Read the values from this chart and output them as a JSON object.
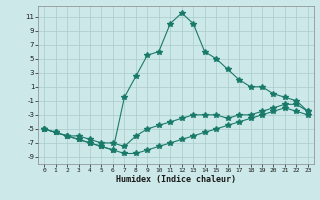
{
  "xlabel": "Humidex (Indice chaleur)",
  "bg_color": "#cce8e8",
  "grid_color": "#aacccc",
  "line_color": "#1a7a6a",
  "xlim": [
    -0.5,
    23.5
  ],
  "ylim": [
    -10,
    12.5
  ],
  "xticks": [
    0,
    1,
    2,
    3,
    4,
    5,
    6,
    7,
    8,
    9,
    10,
    11,
    12,
    13,
    14,
    15,
    16,
    17,
    18,
    19,
    20,
    21,
    22,
    23
  ],
  "yticks": [
    -9,
    -7,
    -5,
    -3,
    -1,
    1,
    3,
    5,
    7,
    9,
    11
  ],
  "line3_x": [
    0,
    1,
    2,
    3,
    4,
    5,
    6,
    7,
    8,
    9,
    10,
    11,
    12,
    13,
    14,
    15,
    16,
    17,
    18,
    19,
    20,
    21,
    22,
    23
  ],
  "line3_y": [
    -5,
    -5.5,
    -6,
    -6.5,
    -7,
    -7.5,
    -8,
    -8.5,
    -8.5,
    -8,
    -7.5,
    -7,
    -6.5,
    -6,
    -5.5,
    -5,
    -4.5,
    -4,
    -3.5,
    -3,
    -2.5,
    -2,
    -2.5,
    -3
  ],
  "line2_x": [
    0,
    1,
    2,
    3,
    4,
    5,
    6,
    7,
    8,
    9,
    10,
    11,
    12,
    13,
    14,
    15,
    16,
    17,
    18,
    19,
    20,
    21,
    22,
    23
  ],
  "line2_y": [
    -5,
    -5.5,
    -6,
    -6,
    -6.5,
    -7,
    -7,
    -7.5,
    -6,
    -5,
    -4.5,
    -4,
    -3.5,
    -3,
    -3,
    -3,
    -3.5,
    -3,
    -3,
    -2.5,
    -2,
    -1.5,
    -1.5,
    -2.5
  ],
  "line1_x": [
    0,
    1,
    2,
    3,
    4,
    5,
    6,
    7,
    8,
    9,
    10,
    11,
    12,
    13,
    14,
    15,
    16,
    17,
    18,
    19,
    20,
    21,
    22,
    23
  ],
  "line1_y": [
    -5,
    -5.5,
    -6,
    -6.5,
    -7,
    -7.5,
    -8,
    -0.5,
    2.5,
    5.5,
    6,
    10,
    11.5,
    10,
    6,
    5,
    3.5,
    2,
    1,
    1,
    0,
    -0.5,
    -1,
    -2.5
  ],
  "marker": "*",
  "markersize": 4
}
